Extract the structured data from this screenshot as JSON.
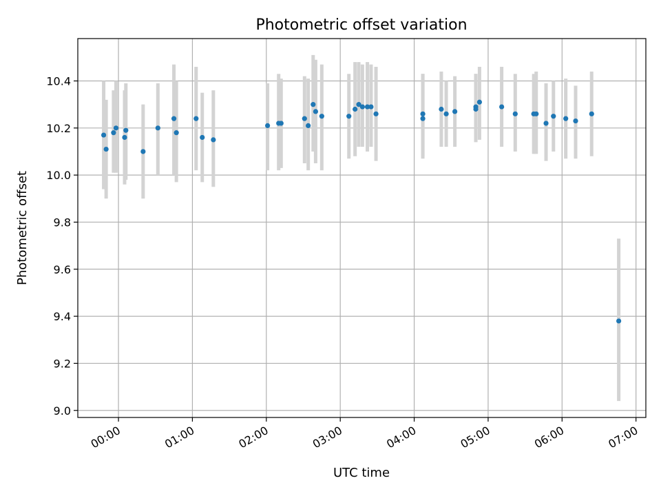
{
  "chart_data": {
    "type": "scatter",
    "title": "Photometric offset variation",
    "xlabel": "UTC time",
    "ylabel": "Photometric offset",
    "xlim": [
      "23:27",
      "07:08"
    ],
    "ylim": [
      8.97,
      10.58
    ],
    "x_ticks": [
      "00:00",
      "01:00",
      "02:00",
      "03:00",
      "04:00",
      "05:00",
      "06:00",
      "07:00"
    ],
    "y_ticks": [
      9.0,
      9.2,
      9.4,
      9.6,
      9.8,
      10.0,
      10.2,
      10.4
    ],
    "grid": true,
    "colors": {
      "points": "#1f77b4",
      "errorbars": "#d3d3d3",
      "grid": "#b0b0b0"
    },
    "series": [
      {
        "x": [
          "23:48",
          "23:50",
          "23:56",
          "23:58",
          "00:05",
          "00:06",
          "00:20",
          "00:32",
          "00:45",
          "00:47",
          "01:03",
          "01:08",
          "01:17",
          "02:01",
          "02:10",
          "02:12",
          "02:31",
          "02:34",
          "02:38",
          "02:40",
          "02:45",
          "03:07",
          "03:12",
          "03:15",
          "03:18",
          "03:22",
          "03:25",
          "03:29",
          "04:07",
          "04:07",
          "04:22",
          "04:26",
          "04:33",
          "04:50",
          "04:50",
          "04:53",
          "05:11",
          "05:22",
          "05:37",
          "05:39",
          "05:47",
          "05:53",
          "06:03",
          "06:11",
          "06:24",
          "06:46"
        ],
        "y": [
          10.17,
          10.11,
          10.18,
          10.2,
          10.16,
          10.19,
          10.1,
          10.2,
          10.24,
          10.18,
          10.24,
          10.16,
          10.15,
          10.21,
          10.22,
          10.22,
          10.24,
          10.21,
          10.3,
          10.27,
          10.25,
          10.25,
          10.28,
          10.3,
          10.29,
          10.29,
          10.29,
          10.26,
          10.24,
          10.26,
          10.28,
          10.26,
          10.27,
          10.29,
          10.28,
          10.31,
          10.29,
          10.26,
          10.26,
          10.26,
          10.22,
          10.25,
          10.24,
          10.23,
          10.26,
          9.38
        ],
        "ylow": [
          9.94,
          9.9,
          10.01,
          10.01,
          9.96,
          9.98,
          9.9,
          10.0,
          10.0,
          9.97,
          10.02,
          9.97,
          9.95,
          10.02,
          10.02,
          10.03,
          10.05,
          10.02,
          10.1,
          10.05,
          10.02,
          10.07,
          10.08,
          10.12,
          10.12,
          10.1,
          10.12,
          10.06,
          10.07,
          10.08,
          10.12,
          10.12,
          10.12,
          10.14,
          10.14,
          10.15,
          10.12,
          10.1,
          10.09,
          10.09,
          10.06,
          10.1,
          10.07,
          10.07,
          10.08,
          9.04
        ],
        "yhigh": [
          10.4,
          10.32,
          10.36,
          10.4,
          10.36,
          10.39,
          10.3,
          10.39,
          10.47,
          10.4,
          10.46,
          10.35,
          10.36,
          10.39,
          10.43,
          10.41,
          10.42,
          10.41,
          10.51,
          10.49,
          10.47,
          10.43,
          10.48,
          10.48,
          10.47,
          10.48,
          10.47,
          10.46,
          10.43,
          10.43,
          10.44,
          10.4,
          10.42,
          10.43,
          10.43,
          10.46,
          10.46,
          10.43,
          10.43,
          10.44,
          10.39,
          10.4,
          10.41,
          10.38,
          10.44,
          9.73
        ]
      }
    ]
  }
}
